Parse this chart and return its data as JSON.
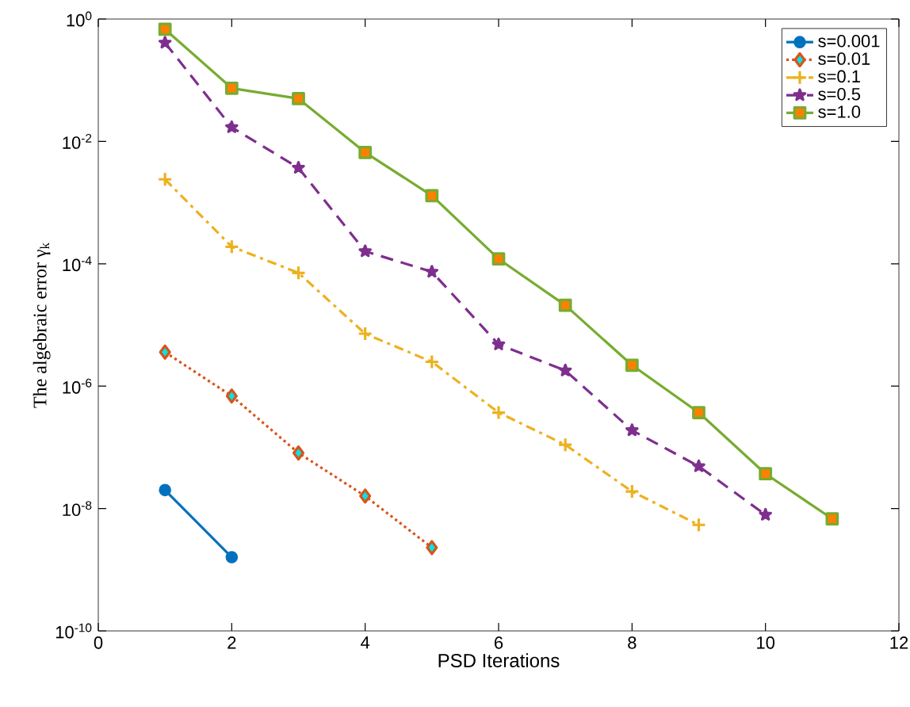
{
  "chart_data": {
    "type": "line",
    "xlabel": "PSD Iterations",
    "ylabel": "The algebraic error γ$_{k}$",
    "series": [
      {
        "name": "s=0.001",
        "color": "#0072bd",
        "marker": "circle",
        "line_style": "solid",
        "x": [
          1,
          2
        ],
        "values": [
          2e-08,
          1.6e-09
        ]
      },
      {
        "name": "s=0.01",
        "color": "#d95319",
        "marker": "diamond",
        "line_style": "dotted",
        "x": [
          1,
          2,
          3,
          4,
          5
        ],
        "values": [
          3.6e-06,
          6.9e-07,
          8.1e-08,
          1.6e-08,
          2.3e-09
        ]
      },
      {
        "name": "s=0.1",
        "color": "#edb120",
        "marker": "cross",
        "line_style": "dashdot",
        "x": [
          1,
          2,
          3,
          4,
          5,
          6,
          7,
          8,
          9
        ],
        "values": [
          0.0024,
          0.00019,
          7.1e-05,
          7.2e-06,
          2.5e-06,
          3.7e-07,
          1.1e-07,
          1.9e-08,
          5.4e-09
        ]
      },
      {
        "name": "s=0.5",
        "color": "#7e2f8e",
        "marker": "star",
        "line_style": "dashed",
        "x": [
          1,
          2,
          3,
          4,
          5,
          6,
          7,
          8,
          9,
          10
        ],
        "values": [
          0.41,
          0.017,
          0.0037,
          0.00016,
          7.4e-05,
          4.8e-06,
          1.8e-06,
          1.9e-07,
          4.9e-08,
          7.9e-09
        ]
      },
      {
        "name": "s=1.0",
        "color": "#77ac30",
        "marker": "square",
        "line_style": "solid",
        "x": [
          1,
          2,
          3,
          4,
          5,
          6,
          7,
          8,
          9,
          10,
          11
        ],
        "values": [
          0.68,
          0.074,
          0.05,
          0.0066,
          0.0013,
          0.00012,
          2.1e-05,
          2.2e-06,
          3.7e-07,
          3.7e-08,
          6.8e-09
        ]
      }
    ],
    "log": "y",
    "xlim": [
      0,
      12
    ],
    "xticks": [
      0,
      2,
      4,
      6,
      8,
      10,
      12
    ],
    "ylim": [
      1e-10,
      1
    ],
    "yticks": [
      {
        "value": 1e-10,
        "label": "10$^{-10}$"
      },
      {
        "value": 1e-08,
        "label": "10$^{-8}$"
      },
      {
        "value": 1e-06,
        "label": "10$^{-6}$"
      },
      {
        "value": 0.0001,
        "label": "10$^{-4}$"
      },
      {
        "value": 0.01,
        "label": "10$^{-2}$"
      },
      {
        "value": 1,
        "label": "10$^{0}$"
      }
    ],
    "grid": false,
    "legend": "top right"
  }
}
